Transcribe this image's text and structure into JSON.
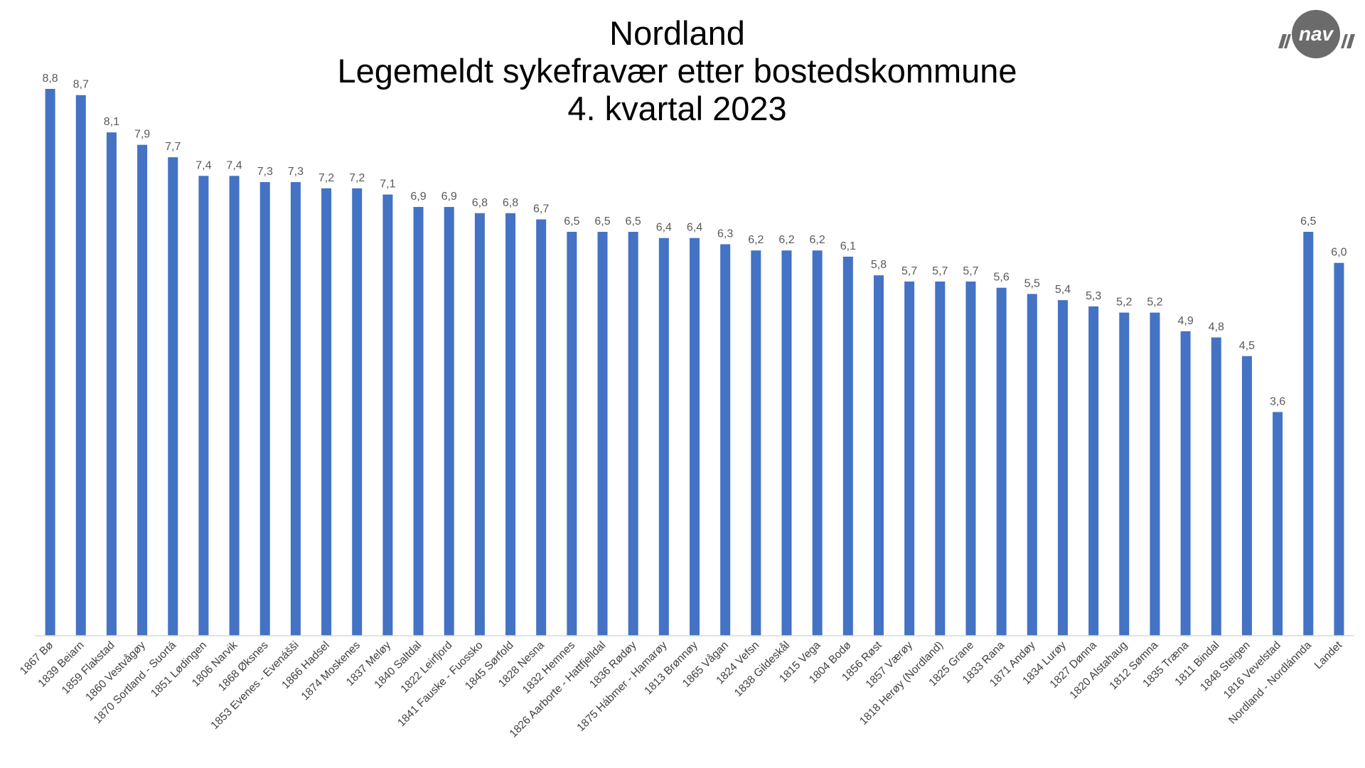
{
  "chart_data": {
    "type": "bar",
    "title": [
      "Nordland",
      "Legemeldt sykefravær etter bostedskommune",
      "4. kvartal 2023"
    ],
    "xlabel": "",
    "ylabel": "",
    "ylim": [
      0,
      8.8
    ],
    "grid": false,
    "legend": "none",
    "categories": [
      "1867 Bø",
      "1839 Beiarn",
      "1859 Flakstad",
      "1860 Vestvågøy",
      "1870 Sortland - Suortá",
      "1851 Lødingen",
      "1806 Narvik",
      "1868 Øksnes",
      "1853 Evenes - Evenášši",
      "1866 Hadsel",
      "1874 Moskenes",
      "1837 Meløy",
      "1840 Saltdal",
      "1822 Leirfjord",
      "1841 Fauske - Fuossko",
      "1845 Sørfold",
      "1828 Nesna",
      "1832 Hemnes",
      "1826 Aarborte - Hattfjelldal",
      "1836 Rødøy",
      "1875 Hábmer - Hamarøy",
      "1813 Brønnøy",
      "1865 Vågan",
      "1824 Vefsn",
      "1838 Gildeskål",
      "1815 Vega",
      "1804 Bodø",
      "1856 Røst",
      "1857 Værøy",
      "1818 Herøy (Nordland)",
      "1825 Grane",
      "1833 Rana",
      "1871 Andøy",
      "1834 Lurøy",
      "1827 Dønna",
      "1820 Alstahaug",
      "1812 Sømna",
      "1835 Træna",
      "1811 Bindal",
      "1848 Steigen",
      "1816 Vevelstad",
      "Nordland - Nordlánnda",
      "Landet"
    ],
    "values": [
      8.8,
      8.7,
      8.1,
      7.9,
      7.7,
      7.4,
      7.4,
      7.3,
      7.3,
      7.2,
      7.2,
      7.1,
      6.9,
      6.9,
      6.8,
      6.8,
      6.7,
      6.5,
      6.5,
      6.5,
      6.4,
      6.4,
      6.3,
      6.2,
      6.2,
      6.2,
      6.1,
      5.8,
      5.7,
      5.7,
      5.7,
      5.6,
      5.5,
      5.4,
      5.3,
      5.2,
      5.2,
      4.9,
      4.8,
      4.5,
      3.6,
      6.5,
      6.0
    ],
    "value_labels": [
      "8,8",
      "8,7",
      "8,1",
      "7,9",
      "7,7",
      "7,4",
      "7,4",
      "7,3",
      "7,3",
      "7,2",
      "7,2",
      "7,1",
      "6,9",
      "6,9",
      "6,8",
      "6,8",
      "6,7",
      "6,5",
      "6,5",
      "6,5",
      "6,4",
      "6,4",
      "6,3",
      "6,2",
      "6,2",
      "6,2",
      "6,1",
      "5,8",
      "5,7",
      "5,7",
      "5,7",
      "5,6",
      "5,5",
      "5,4",
      "5,3",
      "5,2",
      "5,2",
      "4,9",
      "4,8",
      "4,5",
      "3,6",
      "6,5",
      "6,0"
    ],
    "colors": {
      "bar": "#4472C4"
    }
  },
  "logo": {
    "text": "nav",
    "icon": "nav-logo",
    "color": "#6b6b6b"
  }
}
